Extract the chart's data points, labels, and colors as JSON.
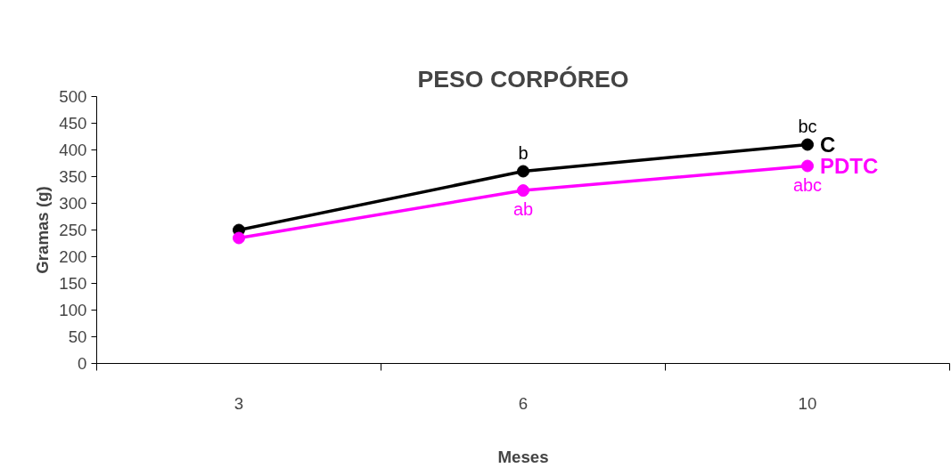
{
  "chart_data": {
    "type": "line",
    "title": "PESO CORPÓREO",
    "xlabel": "Meses",
    "ylabel": "Gramas (g)",
    "categories": [
      "3",
      "6",
      "10"
    ],
    "series": [
      {
        "name": "C",
        "color": "#000000",
        "values": [
          250,
          360,
          410
        ]
      },
      {
        "name": "PDTC",
        "color": "#ff00ff",
        "values": [
          235,
          324,
          370
        ]
      }
    ],
    "ylim": [
      0,
      500
    ],
    "yticks": [
      0,
      50,
      100,
      150,
      200,
      250,
      300,
      350,
      400,
      450,
      500
    ],
    "annotations": [
      {
        "text": "b",
        "x": "6",
        "y": 360
      },
      {
        "text": "bc",
        "x": "10",
        "y": 410
      },
      {
        "text": "ab",
        "x": "6",
        "y": 324
      },
      {
        "text": "abc",
        "x": "10",
        "y": 370
      }
    ],
    "grid": false,
    "legend": false,
    "marker": "circle",
    "line_style": "solid"
  }
}
